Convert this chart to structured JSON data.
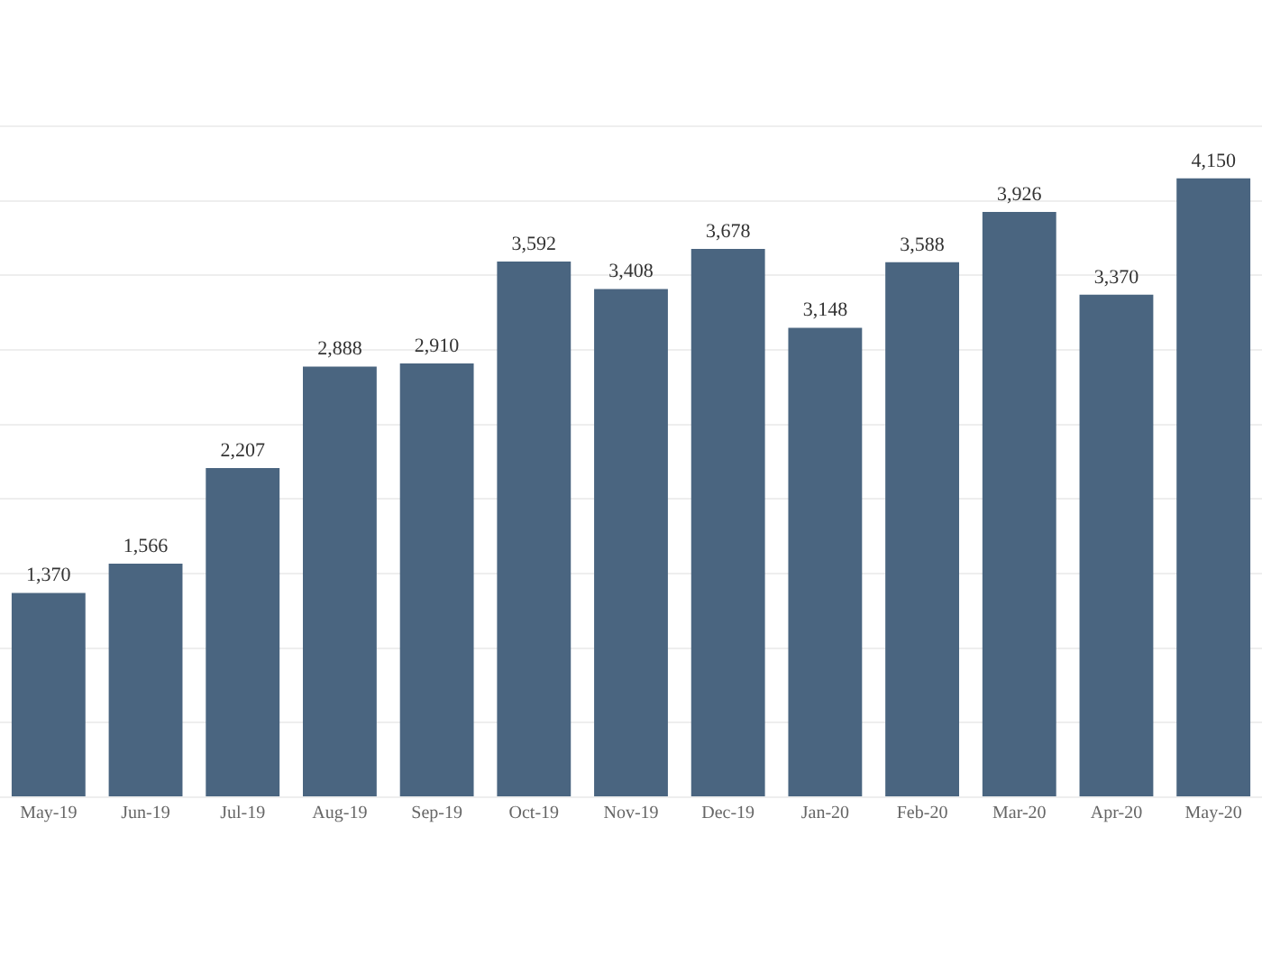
{
  "chart_data": {
    "type": "bar",
    "categories": [
      "May-19",
      "Jun-19",
      "Jul-19",
      "Aug-19",
      "Sep-19",
      "Oct-19",
      "Nov-19",
      "Dec-19",
      "Jan-20",
      "Feb-20",
      "Mar-20",
      "Apr-20",
      "May-20"
    ],
    "series": [
      {
        "color": "#4a6580",
        "values": [
          1370,
          1566,
          2207,
          2888,
          2910,
          3592,
          3408,
          3678,
          3148,
          3588,
          3926,
          3370,
          4150
        ],
        "value_labels": [
          "1,370",
          "1,566",
          "2,207",
          "2,888",
          "2,910",
          "3,592",
          "3,408",
          "3,678",
          "3,148",
          "3,588",
          "3,926",
          "3,370",
          "4,150"
        ]
      }
    ],
    "grid": "y",
    "tick_labels": "x",
    "legend": false
  }
}
